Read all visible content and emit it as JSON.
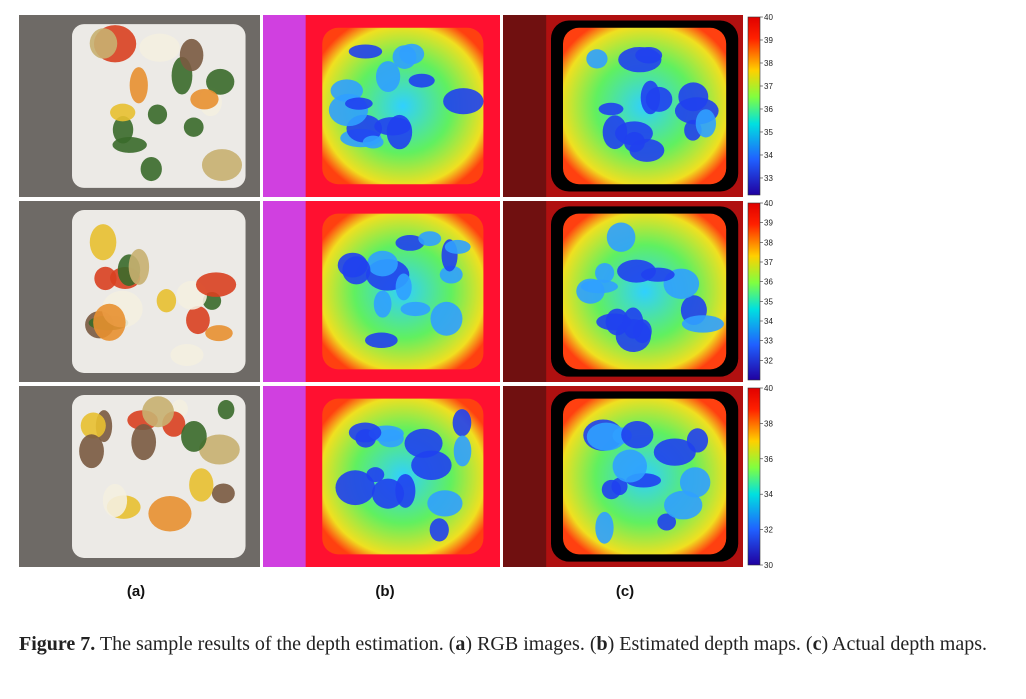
{
  "figure": {
    "panel_labels": [
      "(a)",
      "(b)",
      "(c)"
    ],
    "colorbars": [
      {
        "lim": [
          32.26,
          40
        ],
        "ticks": [
          40,
          39,
          38,
          37,
          36,
          35,
          34,
          33
        ]
      },
      {
        "lim": [
          31,
          40
        ],
        "ticks": [
          40,
          39,
          38,
          37,
          36,
          35,
          34,
          33,
          32
        ]
      },
      {
        "lim": [
          30,
          40
        ],
        "ticks": [
          40,
          38,
          36,
          34,
          32,
          30
        ]
      }
    ]
  },
  "caption": [
    {
      "text": "Figure 7.",
      "bold": true
    },
    {
      "text": " The sample results of the depth estimation. ("
    },
    {
      "text": "a",
      "bold": true
    },
    {
      "text": ") RGB images. ("
    },
    {
      "text": "b",
      "bold": true
    },
    {
      "text": ") Estimated depth maps. ("
    },
    {
      "text": "c",
      "bold": true
    },
    {
      "text": ") Actual depth maps."
    }
  ]
}
